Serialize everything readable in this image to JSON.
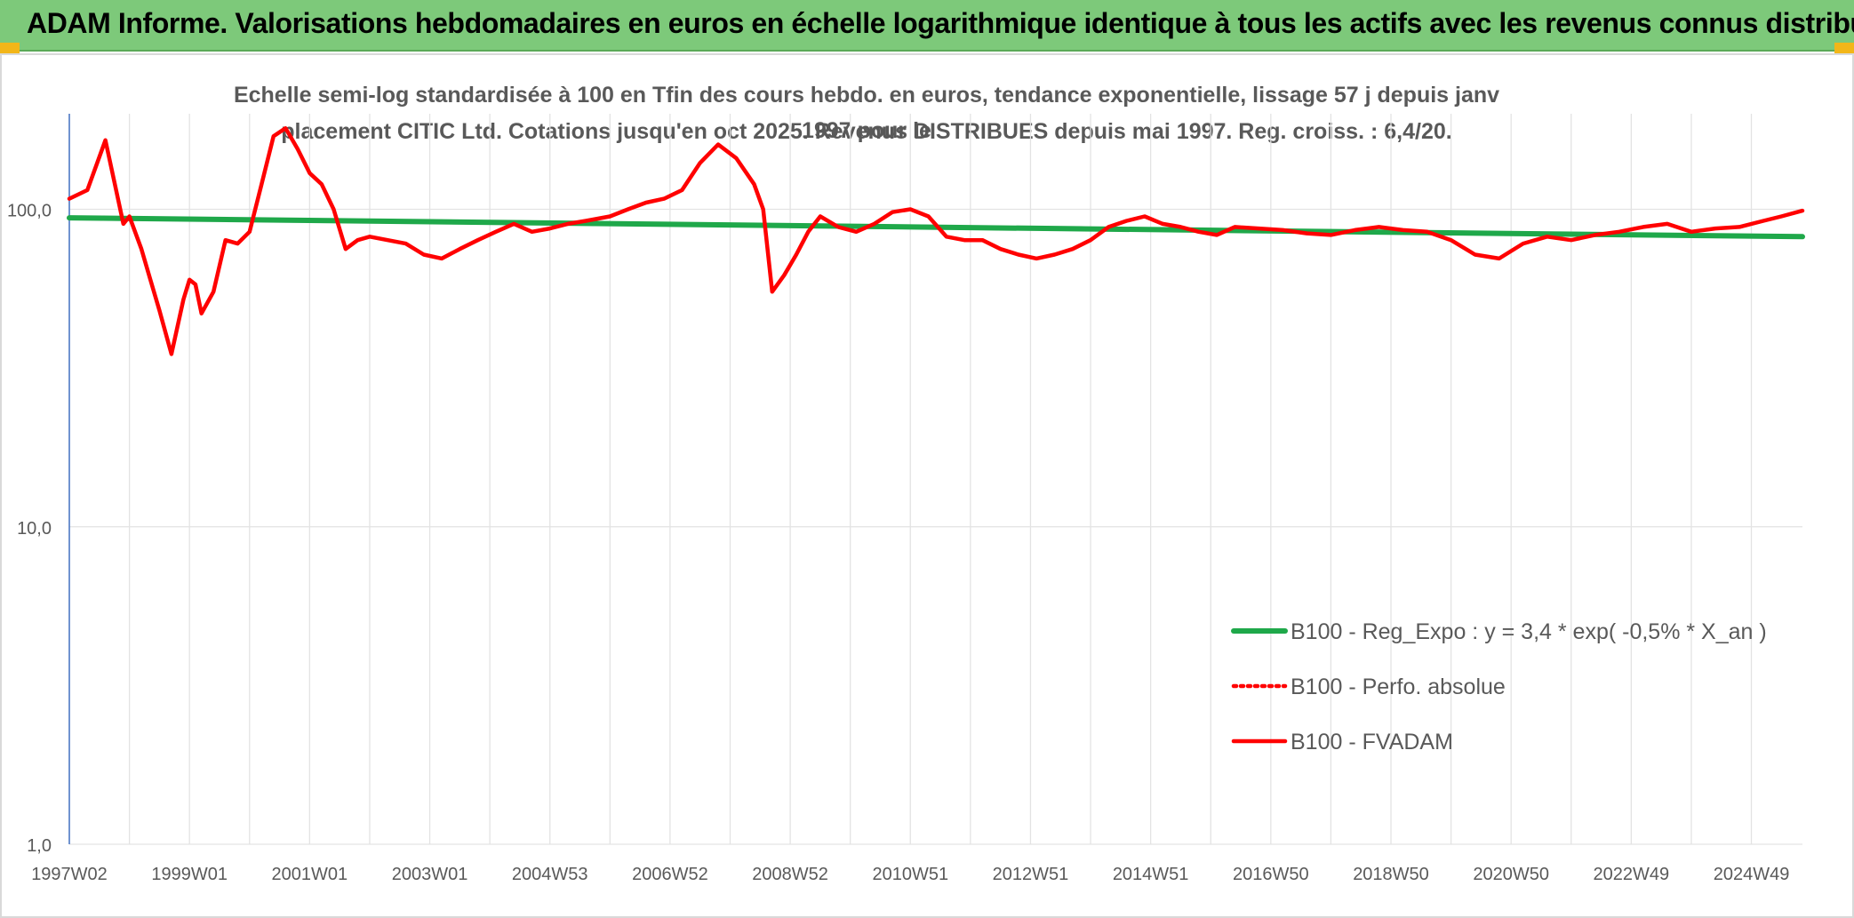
{
  "header": {
    "title": "ADAM Informe. Valorisations hebdomadaires en euros en échelle logarithmique identique à tous les actifs avec les revenus connus distribués",
    "background": "#7dc97a"
  },
  "chart_data": {
    "type": "line",
    "title_line1": "Echelle semi-log standardisée à 100 en Tfin des cours hebdo. en euros, tendance exponentielle, lissage 57 j depuis janv 1997 pour le",
    "title_line2": "placement CITIC Ltd. Cotations jusqu'en oct 2025. Revenus DISTRIBUES depuis mai 1997. Reg. croiss. : 6,4/20.",
    "y_scale": "log",
    "ylim": [
      1,
      200
    ],
    "y_ticks": [
      {
        "value": 1,
        "label": "1,0"
      },
      {
        "value": 10,
        "label": "10,0"
      },
      {
        "value": 100,
        "label": "100,0"
      }
    ],
    "xlim": [
      1997.0,
      2025.85
    ],
    "x_ticks": [
      {
        "value": 1997.0,
        "label": "1997W02"
      },
      {
        "value": 1999.0,
        "label": "1999W01"
      },
      {
        "value": 2001.0,
        "label": "2001W01"
      },
      {
        "value": 2003.0,
        "label": "2003W01"
      },
      {
        "value": 2005.0,
        "label": "2004W53"
      },
      {
        "value": 2007.0,
        "label": "2006W52"
      },
      {
        "value": 2009.0,
        "label": "2008W52"
      },
      {
        "value": 2011.0,
        "label": "2010W51"
      },
      {
        "value": 2013.0,
        "label": "2012W51"
      },
      {
        "value": 2015.0,
        "label": "2014W51"
      },
      {
        "value": 2017.0,
        "label": "2016W50"
      },
      {
        "value": 2019.0,
        "label": "2018W50"
      },
      {
        "value": 2021.0,
        "label": "2020W50"
      },
      {
        "value": 2023.0,
        "label": "2022W49"
      },
      {
        "value": 2025.0,
        "label": "2024W49"
      }
    ],
    "grid": "vertical and horizontal",
    "legend_position": "bottom-right",
    "series": [
      {
        "name": "B100 - Reg_Expo : y = 3,4 * exp( -0,5% *  X_an )",
        "color": "#1fa84a",
        "style": "solid",
        "x": [
          1997.0,
          2025.85
        ],
        "y": [
          94,
          82
        ]
      },
      {
        "name": "B100 - Perfo. absolue",
        "color": "#ff0000",
        "style": "dotted",
        "x": [],
        "y": []
      },
      {
        "name": "B100 - FVADAM",
        "color": "#ff0000",
        "style": "solid",
        "x": [
          1997.0,
          1997.3,
          1997.6,
          1997.9,
          1998.0,
          1998.2,
          1998.35,
          1998.5,
          1998.7,
          1998.9,
          1999.0,
          1999.1,
          1999.2,
          1999.4,
          1999.6,
          1999.8,
          2000.0,
          2000.2,
          2000.4,
          2000.6,
          2000.8,
          2001.0,
          2001.2,
          2001.4,
          2001.6,
          2001.8,
          2002.0,
          2002.3,
          2002.6,
          2002.9,
          2003.2,
          2003.5,
          2003.8,
          2004.1,
          2004.4,
          2004.7,
          2005.0,
          2005.3,
          2005.6,
          2006.0,
          2006.3,
          2006.6,
          2006.9,
          2007.2,
          2007.5,
          2007.8,
          2008.1,
          2008.4,
          2008.55,
          2008.7,
          2008.9,
          2009.1,
          2009.3,
          2009.5,
          2009.8,
          2010.1,
          2010.4,
          2010.7,
          2011.0,
          2011.3,
          2011.6,
          2011.9,
          2012.2,
          2012.5,
          2012.8,
          2013.1,
          2013.4,
          2013.7,
          2014.0,
          2014.3,
          2014.6,
          2014.9,
          2015.2,
          2015.5,
          2015.8,
          2016.1,
          2016.4,
          2016.8,
          2017.2,
          2017.6,
          2018.0,
          2018.4,
          2018.8,
          2019.2,
          2019.6,
          2020.0,
          2020.4,
          2020.8,
          2021.2,
          2021.6,
          2022.0,
          2022.4,
          2022.8,
          2023.2,
          2023.6,
          2024.0,
          2024.4,
          2024.8,
          2025.2,
          2025.5,
          2025.85
        ],
        "y": [
          108,
          115,
          165,
          90,
          95,
          75,
          60,
          48,
          35,
          52,
          60,
          58,
          47,
          55,
          80,
          78,
          85,
          120,
          170,
          180,
          155,
          130,
          120,
          100,
          75,
          80,
          82,
          80,
          78,
          72,
          70,
          75,
          80,
          85,
          90,
          85,
          87,
          90,
          92,
          95,
          100,
          105,
          108,
          115,
          140,
          160,
          145,
          120,
          100,
          55,
          62,
          72,
          85,
          95,
          88,
          85,
          90,
          98,
          100,
          95,
          82,
          80,
          80,
          75,
          72,
          70,
          72,
          75,
          80,
          88,
          92,
          95,
          90,
          88,
          85,
          83,
          88,
          87,
          86,
          84,
          83,
          86,
          88,
          86,
          85,
          80,
          72,
          70,
          78,
          82,
          80,
          83,
          85,
          88,
          90,
          85,
          87,
          88,
          92,
          95,
          99
        ]
      }
    ]
  }
}
